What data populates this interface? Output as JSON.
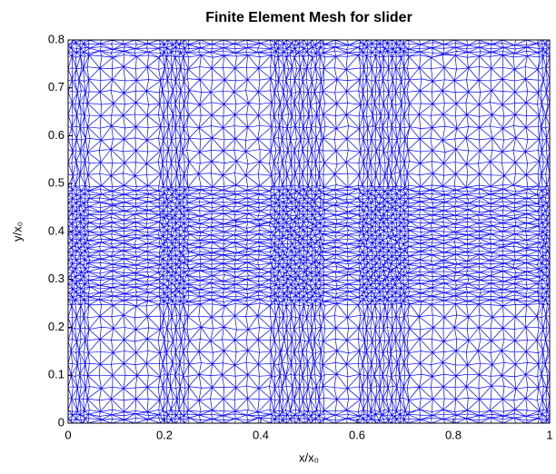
{
  "chart_data": {
    "type": "mesh",
    "title": "Finite Element Mesh for slider",
    "xlabel": "x/x₀",
    "ylabel": "y/x₀",
    "color": "#0000ff",
    "xlim": [
      0,
      1
    ],
    "xticks": [
      0,
      0.2,
      0.4,
      0.6,
      0.8,
      1
    ],
    "ylim": [
      0,
      0.8
    ],
    "yticks": [
      0,
      0.1,
      0.2,
      0.3,
      0.4,
      0.5,
      0.6,
      0.7,
      0.8
    ]
  }
}
